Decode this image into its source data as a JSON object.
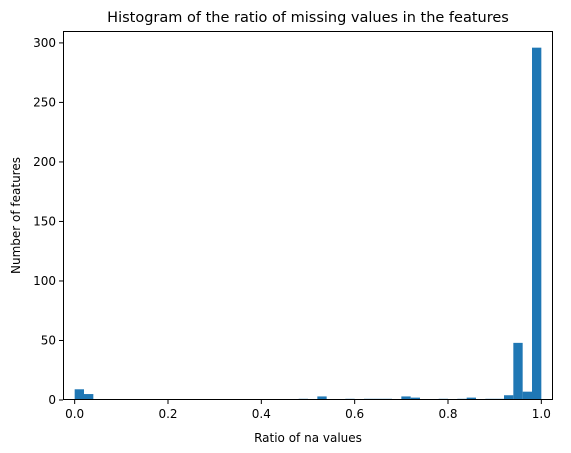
{
  "chart_data": {
    "type": "bar",
    "title": "Histogram of the ratio of missing values in the features",
    "xlabel": "Ratio of na values",
    "ylabel": "Number of features",
    "xlim": [
      -0.025,
      1.025
    ],
    "ylim": [
      0,
      310
    ],
    "x_ticks": [
      "0.0",
      "0.2",
      "0.4",
      "0.6",
      "0.8",
      "1.0"
    ],
    "y_ticks": [
      "0",
      "50",
      "100",
      "150",
      "200",
      "250",
      "300"
    ],
    "bar_color": "#1f77b4",
    "grid": false,
    "bin_width": 0.02,
    "bins": [
      {
        "x": 0.0,
        "count": 9
      },
      {
        "x": 0.02,
        "count": 5
      },
      {
        "x": 0.48,
        "count": 1
      },
      {
        "x": 0.52,
        "count": 3
      },
      {
        "x": 0.58,
        "count": 1
      },
      {
        "x": 0.62,
        "count": 1
      },
      {
        "x": 0.64,
        "count": 1
      },
      {
        "x": 0.66,
        "count": 1
      },
      {
        "x": 0.7,
        "count": 3
      },
      {
        "x": 0.72,
        "count": 2
      },
      {
        "x": 0.78,
        "count": 1
      },
      {
        "x": 0.82,
        "count": 1
      },
      {
        "x": 0.84,
        "count": 2
      },
      {
        "x": 0.88,
        "count": 1
      },
      {
        "x": 0.9,
        "count": 1
      },
      {
        "x": 0.92,
        "count": 4
      },
      {
        "x": 0.94,
        "count": 48
      },
      {
        "x": 0.96,
        "count": 7
      },
      {
        "x": 0.98,
        "count": 296
      }
    ]
  }
}
